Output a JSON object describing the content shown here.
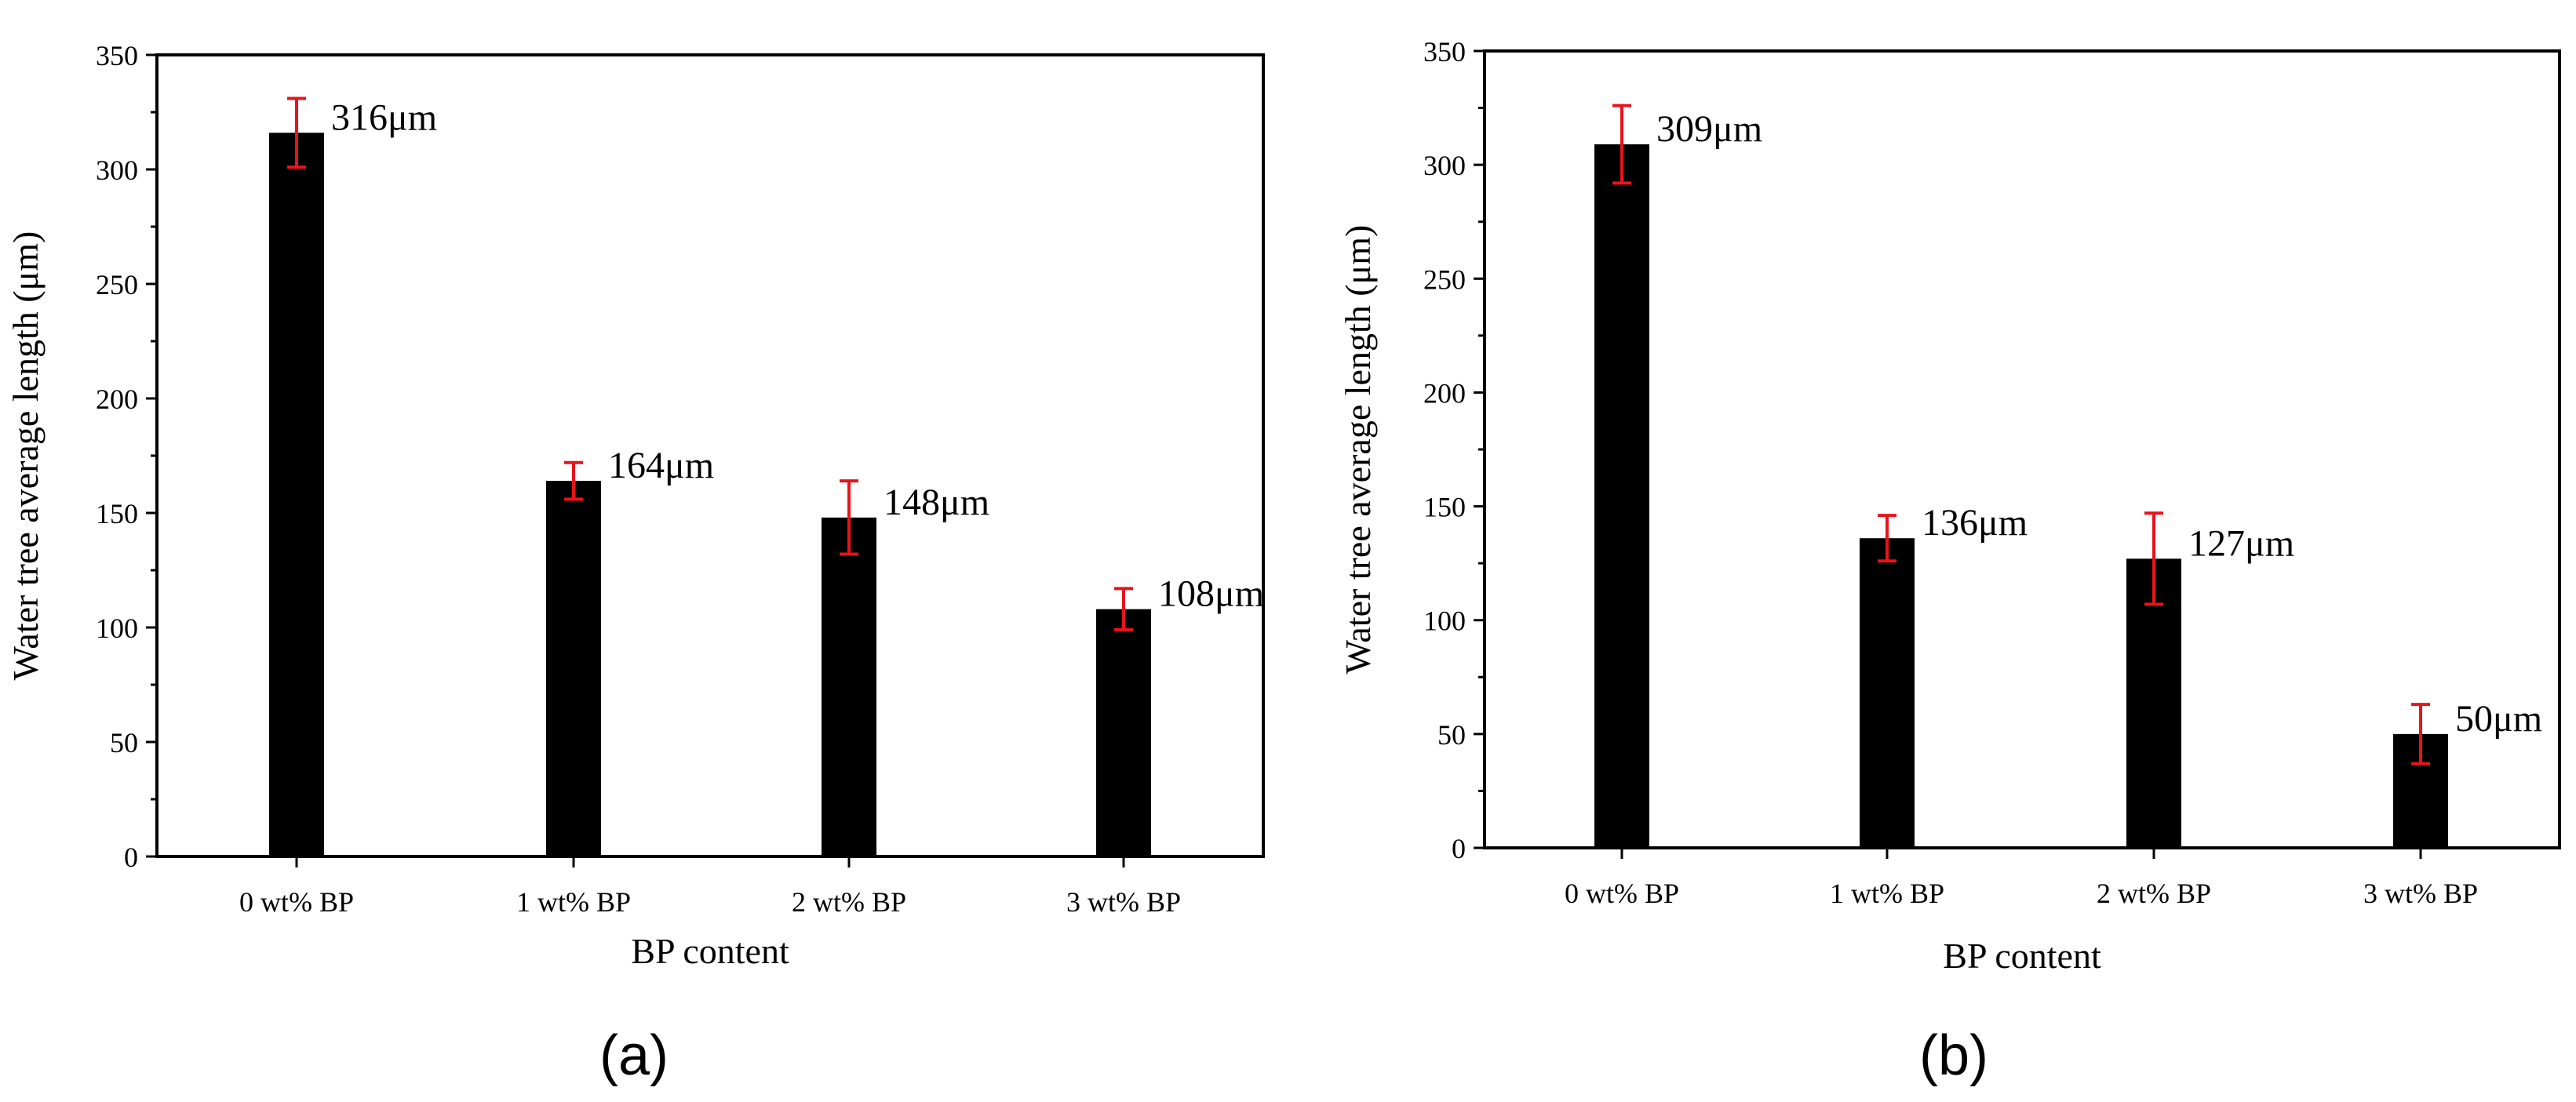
{
  "chart_data": [
    {
      "type": "bar",
      "panel_label": "(a)",
      "categories": [
        "0 wt% BP",
        "1 wt% BP",
        "2 wt% BP",
        "3 wt% BP"
      ],
      "values": [
        316,
        164,
        148,
        108
      ],
      "error": [
        15,
        8,
        16,
        9
      ],
      "value_labels": [
        "316μm",
        "164μm",
        "148μm",
        "108μm"
      ],
      "xlabel": "BP content",
      "ylabel": "Water tree average length (μm)",
      "ylim": [
        0,
        350
      ],
      "yticks": [
        0,
        50,
        100,
        150,
        200,
        250,
        300,
        350
      ],
      "grid": false,
      "bar_color": "#000000",
      "error_color": "#e8141b"
    },
    {
      "type": "bar",
      "panel_label": "(b)",
      "categories": [
        "0 wt% BP",
        "1 wt% BP",
        "2 wt% BP",
        "3 wt% BP"
      ],
      "values": [
        309,
        136,
        127,
        50
      ],
      "error": [
        17,
        10,
        20,
        13
      ],
      "value_labels": [
        "309μm",
        "136μm",
        "127μm",
        "50μm"
      ],
      "xlabel": "BP content",
      "ylabel": "Water tree average length (μm)",
      "ylim": [
        0,
        350
      ],
      "yticks": [
        0,
        50,
        100,
        150,
        200,
        250,
        300,
        350
      ],
      "grid": false,
      "bar_color": "#000000",
      "error_color": "#e8141b"
    }
  ]
}
